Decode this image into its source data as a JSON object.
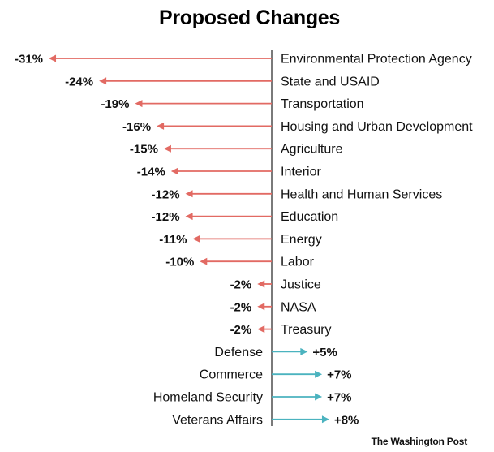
{
  "chart_data": {
    "type": "bar",
    "title": "Proposed Changes",
    "categories": [
      "Environmental Protection Agency",
      "State and USAID",
      "Transportation",
      "Housing and Urban Development",
      "Agriculture",
      "Interior",
      "Health and Human Services",
      "Education",
      "Energy",
      "Labor",
      "Justice",
      "NASA",
      "Treasury",
      "Defense",
      "Commerce",
      "Homeland Security",
      "Veterans Affairs"
    ],
    "values": [
      -31,
      -24,
      -19,
      -16,
      -15,
      -14,
      -12,
      -12,
      -11,
      -10,
      -2,
      -2,
      -2,
      5,
      7,
      7,
      8
    ],
    "value_labels": [
      "-31%",
      "-24%",
      "-19%",
      "-16%",
      "-15%",
      "-14%",
      "-12%",
      "-12%",
      "-11%",
      "-10%",
      "-2%",
      "-2%",
      "-2%",
      "+5%",
      "+7%",
      "+7%",
      "+8%"
    ],
    "orientation": "horizontal",
    "style": "arrows",
    "negative_color": "#e26a63",
    "positive_color": "#4bb3bf",
    "grid": false,
    "legend": "none"
  },
  "credit": "The Washington Post"
}
